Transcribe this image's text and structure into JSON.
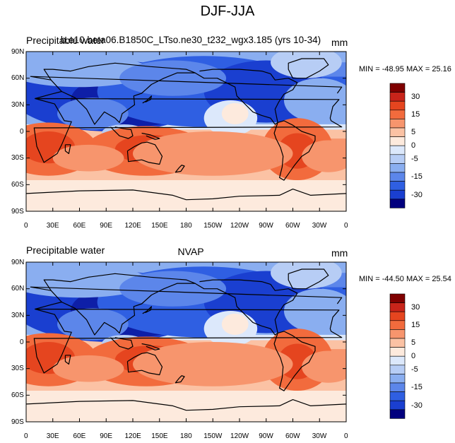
{
  "title": "DJF-JJA",
  "chart_data": [
    {
      "type": "heatmap",
      "left_title": "Precipitable water",
      "center_title": "b.e10.beta06.B1850C_LTso.ne30_t232_wgx3.185 (yrs 10-34)",
      "units": "mm",
      "stats": "MIN = -48.95   MAX =  25.16",
      "min": -48.95,
      "max": 25.16,
      "lat_labels": [
        "90N",
        "60N",
        "30N",
        "0",
        "30S",
        "60S",
        "90S"
      ],
      "lon_labels": [
        "0",
        "30E",
        "60E",
        "90E",
        "120E",
        "150E",
        "180",
        "150W",
        "120W",
        "90W",
        "60W",
        "30W",
        "0"
      ],
      "colorbar_labels": [
        "30",
        "15",
        "5",
        "0",
        "-5",
        "-15",
        "-30"
      ]
    },
    {
      "type": "heatmap",
      "left_title": "Precipitable water",
      "center_title": "NVAP",
      "units": "mm",
      "stats": "MIN = -44.50   MAX =  25.54",
      "min": -44.5,
      "max": 25.54,
      "lat_labels": [
        "90N",
        "60N",
        "30N",
        "0",
        "30S",
        "60S",
        "90S"
      ],
      "lon_labels": [
        "0",
        "30E",
        "60E",
        "90E",
        "120E",
        "150E",
        "180",
        "150W",
        "120W",
        "90W",
        "60W",
        "30W",
        "0"
      ],
      "colorbar_labels": [
        "30",
        "15",
        "5",
        "0",
        "-5",
        "-15",
        "-30"
      ]
    }
  ],
  "colors": {
    "levels": [
      "#7f0000",
      "#c8241a",
      "#e5451f",
      "#f26b3d",
      "#f7956d",
      "#fbc2a4",
      "#fdeadd",
      "#dce8fb",
      "#b7cdf5",
      "#8aaef0",
      "#5c86ea",
      "#2f5fe2",
      "#1a3fd0",
      "#02007e"
    ]
  }
}
